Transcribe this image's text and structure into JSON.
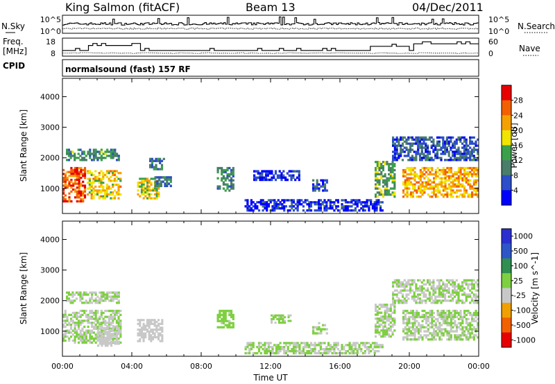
{
  "header": {
    "station": "King Salmon (fitACF)",
    "beam": "Beam 13",
    "date": "04/Dec/2011"
  },
  "top_panels": {
    "nsky_label": "N.Sky",
    "nsky_ticks": [
      "10^5",
      "10^0"
    ],
    "nsearch_label": "N.Search",
    "nsearch_ticks": [
      "10^5",
      "10^0"
    ],
    "freq_label": "Freq.",
    "freq_unit": "[MHz]",
    "freq_ticks": [
      "18",
      "8"
    ],
    "nave_label": "Nave",
    "nave_ticks": [
      "60",
      "0"
    ],
    "cpid_label": "CPID",
    "cpid_value": "normalsound (fast) 157 RF"
  },
  "chart_data": [
    {
      "type": "heatmap",
      "name": "power",
      "ylabel": "Slant Range [km]",
      "xlabel": "",
      "ylim": [
        180,
        4600
      ],
      "yticks": [
        "4000",
        "3000",
        "2000",
        "1000"
      ],
      "colorbar": {
        "label": "Power [dB]",
        "ticks": [
          "28",
          "24",
          "20",
          "16",
          "12",
          "8",
          "4"
        ],
        "colors": [
          "#0000ff",
          "#2c4ec8",
          "#4a7d6a",
          "#3aa04a",
          "#f0e400",
          "#f6a000",
          "#f36000",
          "#e80000"
        ],
        "range": [
          0,
          32
        ]
      },
      "regions": [
        {
          "t0": 0.0,
          "t1": 1.35,
          "r0": 550,
          "r1": 1700,
          "level": 0.82
        },
        {
          "t0": 1.4,
          "t1": 3.4,
          "r0": 650,
          "r1": 1600,
          "level": 0.62
        },
        {
          "t0": 0.2,
          "t1": 3.3,
          "r0": 1900,
          "r1": 2300,
          "level": 0.35
        },
        {
          "t0": 4.3,
          "t1": 5.6,
          "r0": 650,
          "r1": 1350,
          "level": 0.58
        },
        {
          "t0": 5.3,
          "t1": 6.3,
          "r0": 1050,
          "r1": 1400,
          "level": 0.3
        },
        {
          "t0": 5.0,
          "t1": 5.9,
          "r0": 1600,
          "r1": 2000,
          "level": 0.3
        },
        {
          "t0": 8.9,
          "t1": 9.9,
          "r0": 900,
          "r1": 1700,
          "level": 0.32
        },
        {
          "t0": 11.0,
          "t1": 13.7,
          "r0": 1250,
          "r1": 1600,
          "level": 0.12
        },
        {
          "t0": 14.4,
          "t1": 15.3,
          "r0": 900,
          "r1": 1300,
          "level": 0.18
        },
        {
          "t0": 18.0,
          "t1": 19.2,
          "r0": 700,
          "r1": 1900,
          "level": 0.42
        },
        {
          "t0": 19.6,
          "t1": 24.0,
          "r0": 700,
          "r1": 1700,
          "level": 0.66
        },
        {
          "t0": 19.0,
          "t1": 24.0,
          "r0": 1900,
          "r1": 2700,
          "level": 0.22
        },
        {
          "t0": 10.5,
          "t1": 18.5,
          "r0": 250,
          "r1": 650,
          "level": 0.12
        }
      ]
    },
    {
      "type": "heatmap",
      "name": "velocity",
      "ylabel": "Slant Range [km]",
      "xlabel": "Time UT",
      "ylim": [
        180,
        4600
      ],
      "yticks": [
        "4000",
        "3000",
        "2000",
        "1000"
      ],
      "x": [
        "00:00",
        "04:00",
        "08:00",
        "12:00",
        "16:00",
        "20:00",
        "00:00"
      ],
      "colorbar": {
        "label": "Velocity [m s^-1]",
        "ticks": [
          "1000",
          "500",
          "100",
          "25",
          "-25",
          "-100",
          "-500",
          "-1000"
        ],
        "colors": [
          "#2b2fd0",
          "#2e56c8",
          "#2f8e50",
          "#7ed040",
          "#c8c8c8",
          "#f0a000",
          "#f36000",
          "#e80000"
        ],
        "range": [
          -1200,
          1200
        ]
      },
      "regions": [
        {
          "t0": 0.0,
          "t1": 3.4,
          "r0": 600,
          "r1": 1700,
          "vel": 0
        },
        {
          "t0": 0.2,
          "t1": 3.3,
          "r0": 1900,
          "r1": 2300,
          "vel": 0
        },
        {
          "t0": 2.0,
          "t1": 3.3,
          "r0": 500,
          "r1": 1200,
          "vel": -150
        },
        {
          "t0": 4.3,
          "t1": 5.8,
          "r0": 650,
          "r1": 1400,
          "vel": -150
        },
        {
          "t0": 8.9,
          "t1": 9.9,
          "r0": 1100,
          "r1": 1700,
          "vel": 100
        },
        {
          "t0": 12.0,
          "t1": 13.2,
          "r0": 1250,
          "r1": 1550,
          "vel": 50
        },
        {
          "t0": 14.4,
          "t1": 15.3,
          "r0": 900,
          "r1": 1300,
          "vel": 0
        },
        {
          "t0": 18.0,
          "t1": 19.2,
          "r0": 800,
          "r1": 1900,
          "vel": 0
        },
        {
          "t0": 19.6,
          "t1": 24.0,
          "r0": 700,
          "r1": 1700,
          "vel": 0
        },
        {
          "t0": 19.0,
          "t1": 24.0,
          "r0": 1900,
          "r1": 2700,
          "vel": 0
        },
        {
          "t0": 10.5,
          "t1": 18.5,
          "r0": 250,
          "r1": 650,
          "vel": 0
        }
      ]
    }
  ]
}
